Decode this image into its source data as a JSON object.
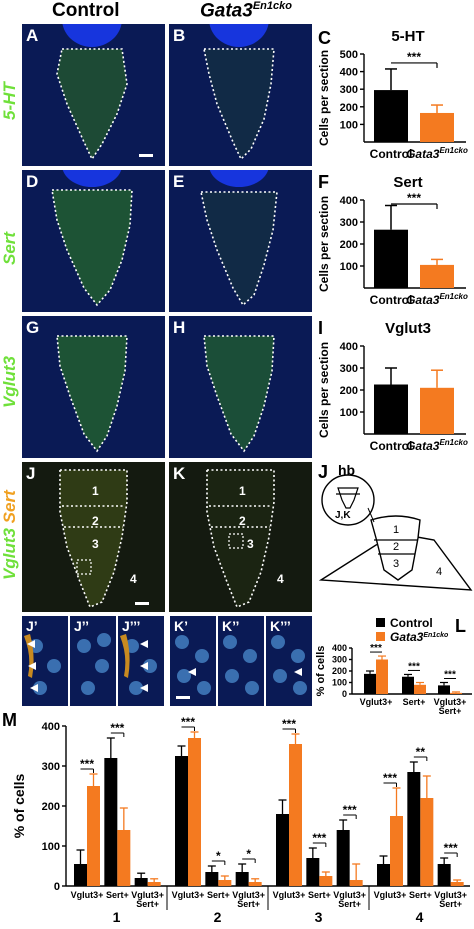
{
  "column_headers": {
    "control": "Control",
    "mutant_base": "Gata3",
    "mutant_sup": "En1cko"
  },
  "panel_letters": {
    "A": "A",
    "B": "B",
    "C": "C",
    "D": "D",
    "E": "E",
    "F": "F",
    "G": "G",
    "H": "H",
    "I": "I",
    "J": "J",
    "K": "K",
    "L": "L",
    "M": "M",
    "J1": "J’",
    "J2": "J’’",
    "J3": "J’’’",
    "K1": "K’",
    "K2": "K’’",
    "K3": "K’’’"
  },
  "row_labels": {
    "r1": "5-HT",
    "r2": "Sert",
    "r3": "Vglut3",
    "r4a": "Vglut3",
    "r4b": "Sert"
  },
  "schematic": {
    "hb": "hb",
    "jk": "J,K",
    "regions": [
      "1",
      "2",
      "3",
      "4"
    ]
  },
  "region_labels": [
    "1",
    "2",
    "3",
    "4"
  ],
  "colors": {
    "control": "#000000",
    "mutant": "#f47a20",
    "green": "#6fe03a",
    "orange": "#f0a020"
  },
  "chart_data": [
    {
      "panel": "C",
      "type": "bar",
      "title": "5-HT",
      "ylabel": "Cells per section",
      "categories": [
        "Control",
        "Gata3"
      ],
      "category_sup": [
        "",
        "En1cko"
      ],
      "values": [
        295,
        165
      ],
      "errors": [
        120,
        45
      ],
      "ylim": [
        0,
        500
      ],
      "yticks": [
        "100",
        "200",
        "300",
        "400",
        "500"
      ],
      "significance": "***",
      "grid": false
    },
    {
      "panel": "F",
      "type": "bar",
      "title": "Sert",
      "ylabel": "Cells per section",
      "categories": [
        "Control",
        "Gata3"
      ],
      "category_sup": [
        "",
        "En1cko"
      ],
      "values": [
        265,
        105
      ],
      "errors": [
        110,
        25
      ],
      "ylim": [
        0,
        400
      ],
      "yticks": [
        "100",
        "200",
        "300",
        "400"
      ],
      "significance": "***",
      "grid": false
    },
    {
      "panel": "I",
      "type": "bar",
      "title": "Vglut3",
      "ylabel": "Cells per section",
      "categories": [
        "Control",
        "Gata3"
      ],
      "category_sup": [
        "",
        "En1cko"
      ],
      "values": [
        225,
        210
      ],
      "errors": [
        75,
        80
      ],
      "ylim": [
        0,
        400
      ],
      "yticks": [
        "100",
        "200",
        "300",
        "400"
      ],
      "significance": "",
      "grid": false
    },
    {
      "panel": "L",
      "type": "bar",
      "ylabel": "% of cells",
      "legend": [
        {
          "name": "Control",
          "sup": ""
        },
        {
          "name": "Gata3",
          "sup": "En1cko"
        }
      ],
      "legend_position": "top-right",
      "categories": [
        "Vglut3+",
        "Sert+",
        "Vglut3+\nSert+"
      ],
      "series": [
        {
          "name": "Control",
          "values": [
            175,
            150,
            75
          ],
          "errors": [
            25,
            20,
            25
          ]
        },
        {
          "name": "Gata3En1cko",
          "values": [
            300,
            80,
            10
          ],
          "errors": [
            30,
            20,
            8
          ]
        }
      ],
      "significance": [
        "***",
        "***",
        "***"
      ],
      "ylim": [
        0,
        400
      ],
      "yticks": [
        "0",
        "100",
        "200",
        "300",
        "400"
      ],
      "grid": false
    },
    {
      "panel": "M",
      "type": "bar",
      "ylabel": "% of cells",
      "groups": [
        "1",
        "2",
        "3",
        "4"
      ],
      "categories": [
        "Vglut3+",
        "Sert+",
        "Vglut3+\nSert+"
      ],
      "series": [
        {
          "name": "Control",
          "values": [
            [
              55,
              320,
              20
            ],
            [
              325,
              35,
              35
            ],
            [
              180,
              70,
              140
            ],
            [
              55,
              285,
              55
            ]
          ],
          "errors": [
            [
              35,
              50,
              12
            ],
            [
              25,
              15,
              20
            ],
            [
              35,
              25,
              25
            ],
            [
              20,
              25,
              15
            ]
          ]
        },
        {
          "name": "Gata3En1cko",
          "values": [
            [
              250,
              140,
              10
            ],
            [
              370,
              15,
              10
            ],
            [
              355,
              25,
              15
            ],
            [
              175,
              220,
              10
            ]
          ],
          "errors": [
            [
              30,
              55,
              8
            ],
            [
              15,
              10,
              8
            ],
            [
              25,
              10,
              40
            ],
            [
              70,
              55,
              5
            ]
          ]
        }
      ],
      "significance": [
        [
          "***",
          "***",
          ""
        ],
        [
          "***",
          "*",
          "*"
        ],
        [
          "***",
          "***",
          "***"
        ],
        [
          "***",
          "**",
          "***"
        ]
      ],
      "ylim": [
        0,
        400
      ],
      "yticks": [
        "0",
        "100",
        "200",
        "300",
        "400"
      ],
      "grid": false
    }
  ]
}
